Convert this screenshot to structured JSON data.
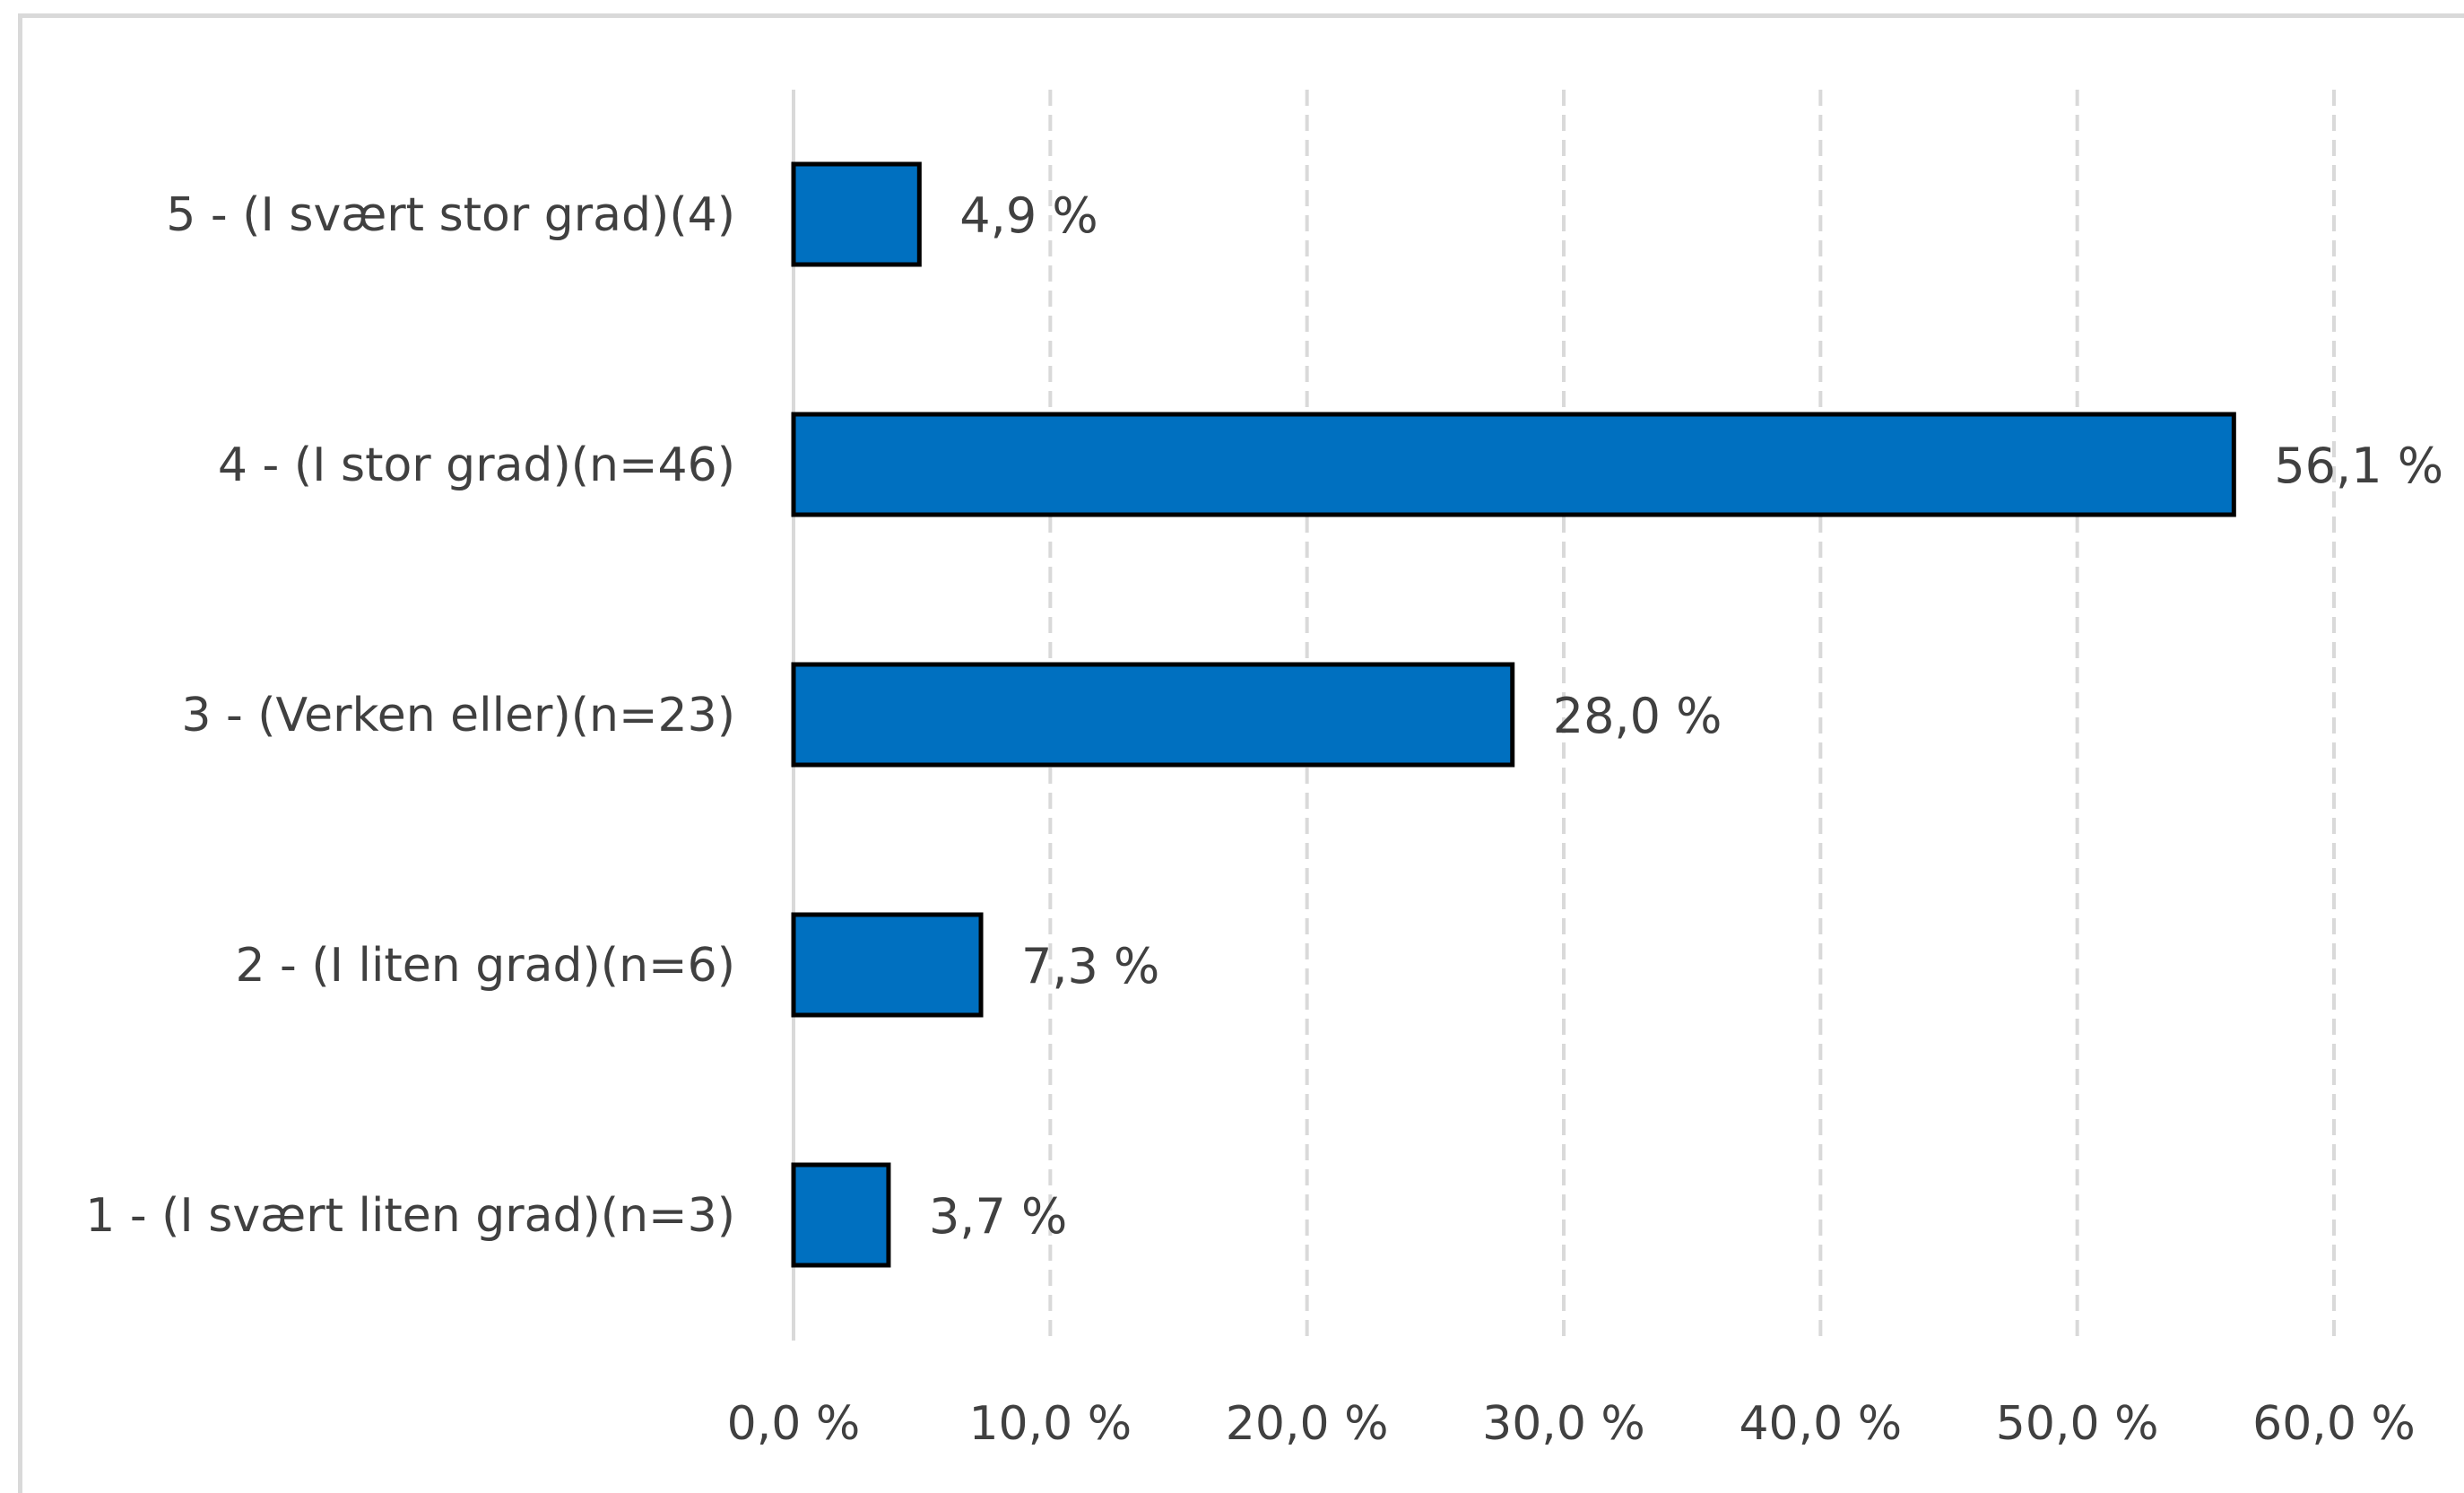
{
  "chart_data": {
    "type": "bar",
    "orientation": "horizontal",
    "categories": [
      "5 - (I svært stor grad)(4)",
      "4 -  (I stor grad)(n=46)",
      "3 -  (Verken eller)(n=23)",
      "2 - (I liten grad)(n=6)",
      "1 - (I svært liten grad)(n=3)"
    ],
    "values": [
      4.9,
      56.1,
      28.0,
      7.3,
      3.7
    ],
    "value_labels": [
      "4,9 %",
      "56,1 %",
      "28,0 %",
      "7,3 %",
      "3,7 %"
    ],
    "xlim": [
      0,
      60
    ],
    "xticks": [
      0,
      10,
      20,
      30,
      40,
      50,
      60
    ],
    "xtick_labels": [
      "0,0 %",
      "10,0 %",
      "20,0 %",
      "30,0 %",
      "40,0 %",
      "50,0 %",
      "60,0 %"
    ],
    "grid": "vertical-dashed",
    "legend": "none",
    "colors": {
      "bar_fill": "#0070c0",
      "bar_stroke": "#000000",
      "gridline": "#d9d9d9",
      "text": "#404040"
    }
  }
}
